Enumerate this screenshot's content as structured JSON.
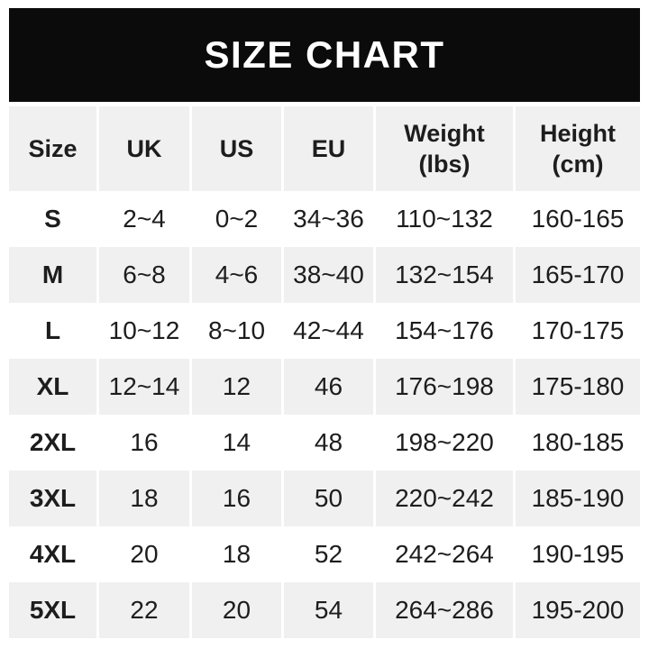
{
  "title": "SIZE CHART",
  "colors": {
    "page_bg": "#ffffff",
    "banner_bg": "#0b0b0b",
    "banner_text": "#ffffff",
    "stripe_bg": "#f0f0f0",
    "row_bg": "#ffffff",
    "text_color": "#1d1d1d"
  },
  "table": {
    "header_cells": [
      {
        "top": "Size"
      },
      {
        "top": "UK"
      },
      {
        "top": "US"
      },
      {
        "top": "EU"
      },
      {
        "top": "Weight",
        "bottom": "(lbs)"
      },
      {
        "top": "Height",
        "bottom": "(cm)"
      }
    ]
  },
  "chart_data": {
    "type": "table",
    "title": "SIZE CHART",
    "columns": [
      "Size",
      "UK",
      "US",
      "EU",
      "Weight (lbs)",
      "Height (cm)"
    ],
    "rows": [
      [
        "S",
        "2~4",
        "0~2",
        "34~36",
        "110~132",
        "160-165"
      ],
      [
        "M",
        "6~8",
        "4~6",
        "38~40",
        "132~154",
        "165-170"
      ],
      [
        "L",
        "10~12",
        "8~10",
        "42~44",
        "154~176",
        "170-175"
      ],
      [
        "XL",
        "12~14",
        "12",
        "46",
        "176~198",
        "175-180"
      ],
      [
        "2XL",
        "16",
        "14",
        "48",
        "198~220",
        "180-185"
      ],
      [
        "3XL",
        "18",
        "16",
        "50",
        "220~242",
        "185-190"
      ],
      [
        "4XL",
        "20",
        "18",
        "52",
        "242~264",
        "190-195"
      ],
      [
        "5XL",
        "22",
        "20",
        "54",
        "264~286",
        "195-200"
      ]
    ]
  }
}
